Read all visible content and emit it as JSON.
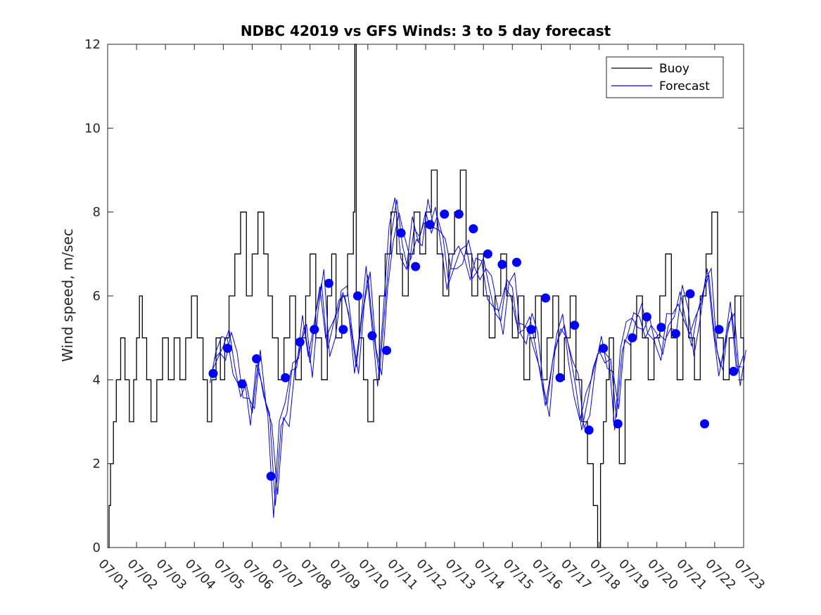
{
  "chart_data": {
    "type": "line",
    "title": "NDBC 42019 vs GFS Winds: 3 to 5 day forecast",
    "xlabel": "",
    "ylabel": "Wind speed, m/sec",
    "x_tick_labels": [
      "07/01",
      "07/02",
      "07/03",
      "07/04",
      "07/05",
      "07/06",
      "07/07",
      "07/08",
      "07/09",
      "07/10",
      "07/11",
      "07/12",
      "07/13",
      "07/14",
      "07/15",
      "07/16",
      "07/17",
      "07/18",
      "07/19",
      "07/20",
      "07/21",
      "07/22",
      "07/23"
    ],
    "ylim": [
      0,
      12
    ],
    "y_ticks": [
      0,
      2,
      4,
      6,
      8,
      10,
      12
    ],
    "legend_position": "top-right",
    "grid": false,
    "series": [
      {
        "name": "Buoy",
        "color": "#000000",
        "style": "hourly step line",
        "x_day": [
          0.0,
          0.05,
          0.1,
          0.2,
          0.3,
          0.45,
          0.6,
          0.75,
          0.9,
          1.0,
          1.1,
          1.2,
          1.35,
          1.5,
          1.7,
          1.9,
          2.1,
          2.3,
          2.5,
          2.7,
          2.9,
          3.1,
          3.3,
          3.45,
          3.6,
          3.75,
          3.9,
          4.05,
          4.2,
          4.4,
          4.6,
          4.8,
          5.0,
          5.2,
          5.4,
          5.55,
          5.7,
          5.9,
          6.1,
          6.3,
          6.5,
          6.7,
          6.85,
          7.0,
          7.2,
          7.4,
          7.6,
          7.75,
          7.9,
          8.1,
          8.3,
          8.5,
          8.55,
          8.6,
          8.7,
          8.85,
          9.0,
          9.2,
          9.4,
          9.6,
          9.8,
          10.0,
          10.2,
          10.4,
          10.6,
          10.8,
          11.0,
          11.2,
          11.4,
          11.6,
          11.8,
          12.0,
          12.2,
          12.4,
          12.6,
          12.8,
          13.0,
          13.2,
          13.4,
          13.6,
          13.8,
          14.0,
          14.2,
          14.4,
          14.6,
          14.8,
          15.0,
          15.2,
          15.4,
          15.6,
          15.8,
          16.0,
          16.2,
          16.4,
          16.6,
          16.8,
          16.95,
          17.05,
          17.15,
          17.25,
          17.35,
          17.5,
          17.7,
          17.9,
          18.1,
          18.3,
          18.5,
          18.7,
          18.9,
          19.1,
          19.3,
          19.5,
          19.7,
          19.9,
          20.1,
          20.3,
          20.5,
          20.7,
          20.9,
          21.1,
          21.3,
          21.5,
          21.7,
          21.9,
          22.0
        ],
        "y": [
          0,
          1,
          2,
          3,
          4,
          5,
          4,
          3,
          4,
          5,
          6,
          5,
          4,
          3,
          4,
          5,
          4,
          5,
          4,
          5,
          6,
          5,
          4,
          3,
          4,
          5,
          4,
          5,
          6,
          7,
          8,
          6,
          7,
          8,
          7,
          6,
          5,
          4,
          5,
          6,
          4,
          5,
          6,
          7,
          5,
          4,
          6,
          7,
          5,
          6,
          7,
          8,
          12,
          6,
          5,
          4,
          3,
          4,
          6,
          7,
          8,
          7,
          6,
          7,
          8,
          7,
          8,
          9,
          7,
          6,
          7,
          8,
          9,
          7,
          6,
          7,
          6,
          5,
          6,
          7,
          6,
          5,
          6,
          4,
          5,
          6,
          4,
          5,
          6,
          4,
          5,
          6,
          4,
          3,
          2,
          1,
          0,
          2,
          3,
          4,
          5,
          3,
          2,
          4,
          5,
          6,
          5,
          4,
          5,
          6,
          7,
          5,
          4,
          6,
          5,
          4,
          6,
          7,
          8,
          5,
          4,
          5,
          6,
          5,
          4
        ]
      },
      {
        "name": "Forecast",
        "color": "#0000ff",
        "style": "thin line, several runs",
        "x_day": [
          3.6,
          3.8,
          4.0,
          4.2,
          4.4,
          4.6,
          4.8,
          5.0,
          5.2,
          5.4,
          5.6,
          5.8,
          6.0,
          6.2,
          6.4,
          6.6,
          6.8,
          7.0,
          7.2,
          7.4,
          7.6,
          7.8,
          8.0,
          8.2,
          8.4,
          8.6,
          8.8,
          9.0,
          9.2,
          9.4,
          9.6,
          9.8,
          10.0,
          10.2,
          10.4,
          10.6,
          10.8,
          11.0,
          11.2,
          11.4,
          11.6,
          11.8,
          12.0,
          12.2,
          12.4,
          12.6,
          12.8,
          13.0,
          13.2,
          13.4,
          13.6,
          13.8,
          14.0,
          14.2,
          14.4,
          14.6,
          14.8,
          15.0,
          15.2,
          15.4,
          15.6,
          15.8,
          16.0,
          16.2,
          16.4,
          16.6,
          16.8,
          17.0,
          17.2,
          17.4,
          17.6,
          17.8,
          18.0,
          18.2,
          18.4,
          18.6,
          18.8,
          19.0,
          19.2,
          19.4,
          19.6,
          19.8,
          20.0,
          20.2,
          20.4,
          20.6,
          20.8,
          21.0,
          21.2,
          21.4,
          21.6,
          21.8,
          22.0
        ],
        "y": [
          4.2,
          4.5,
          4.8,
          5.2,
          4.3,
          3.6,
          3.9,
          3.2,
          4.4,
          3.6,
          3.2,
          1.0,
          2.9,
          3.2,
          4.4,
          4.5,
          5.3,
          4.4,
          5.6,
          6.3,
          4.7,
          5.3,
          5.9,
          6.0,
          5.3,
          4.3,
          5.5,
          6.5,
          5.1,
          4.1,
          5.8,
          7.4,
          8.3,
          7.2,
          6.6,
          7.6,
          7.4,
          8.0,
          7.5,
          7.9,
          7.4,
          6.3,
          6.7,
          7.1,
          7.2,
          6.4,
          6.6,
          6.9,
          6.2,
          5.6,
          5.4,
          6.4,
          6.2,
          5.1,
          5.2,
          5.5,
          4.8,
          4.0,
          3.4,
          4.5,
          5.0,
          5.3,
          4.6,
          3.8,
          2.8,
          3.5,
          4.3,
          4.7,
          4.4,
          4.5,
          3.1,
          4.7,
          5.1,
          5.6,
          5.5,
          5.0,
          5.3,
          5.1,
          4.6,
          5.3,
          5.5,
          6.1,
          5.4,
          4.8,
          5.6,
          6.1,
          6.5,
          5.0,
          4.3,
          5.0,
          5.6,
          4.2,
          4.6
        ]
      },
      {
        "name": "",
        "color": "#0000ff",
        "style": "daily forecast markers (dots)",
        "x_day": [
          3.65,
          4.15,
          4.65,
          5.15,
          5.65,
          6.15,
          6.65,
          7.15,
          7.65,
          8.15,
          8.65,
          9.15,
          9.65,
          10.15,
          10.65,
          11.15,
          11.65,
          12.15,
          12.65,
          13.15,
          13.65,
          14.15,
          14.65,
          15.15,
          15.65,
          16.15,
          16.65,
          17.15,
          17.65,
          18.15,
          18.65,
          19.15,
          19.65,
          20.15,
          20.65,
          21.15,
          21.65
        ],
        "y": [
          4.15,
          4.75,
          3.9,
          4.5,
          1.7,
          4.05,
          4.9,
          5.2,
          6.3,
          5.2,
          6.0,
          5.05,
          4.7,
          7.5,
          6.7,
          7.7,
          7.95,
          7.95,
          7.6,
          7.0,
          6.75,
          6.8,
          5.2,
          5.95,
          4.05,
          5.3,
          2.8,
          4.75,
          2.95,
          5.0,
          5.5,
          5.25,
          5.1,
          6.05,
          2.95,
          5.2,
          4.2
        ]
      }
    ]
  }
}
